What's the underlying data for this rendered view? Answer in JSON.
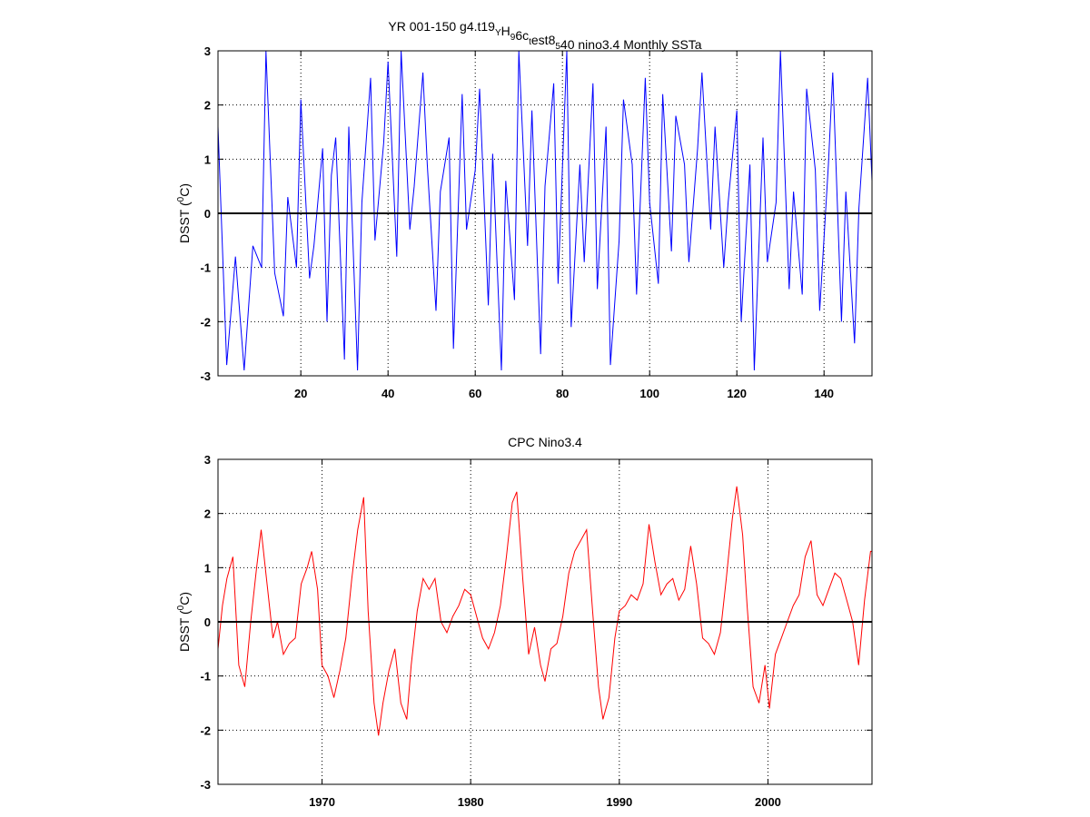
{
  "chart_data": [
    {
      "type": "line",
      "title": "",
      "title_parts": [
        {
          "text": "YR 001-150 g4.t19",
          "sub": false
        },
        {
          "text": "Y",
          "sub": true
        },
        {
          "text": "H",
          "sub": false
        },
        {
          "text": "9",
          "sub": true
        },
        {
          "text": "6c",
          "sub": false
        },
        {
          "text": "t",
          "sub": true
        },
        {
          "text": "est8",
          "sub": false
        },
        {
          "text": "5",
          "sub": true
        },
        {
          "text": "40 nino3.4 Monthly SSTa",
          "sub": false
        }
      ],
      "ylabel": "DSST (",
      "ylabel_sup": "0",
      "ylabel_end": "C)",
      "xlim": [
        1,
        151
      ],
      "ylim": [
        -3,
        3
      ],
      "xticks": [
        20,
        40,
        60,
        80,
        100,
        120,
        140
      ],
      "yticks": [
        -3,
        -2,
        -1,
        0,
        1,
        2,
        3
      ],
      "grid": true,
      "color": "#0000ff",
      "zero_line": true,
      "series": [
        {
          "x": [
            1,
            3,
            5,
            7,
            9,
            11,
            12,
            14,
            16,
            17,
            19,
            20,
            22,
            23,
            25,
            26,
            27,
            28,
            30,
            31,
            33,
            34,
            36,
            37,
            39,
            40,
            42,
            43,
            45,
            46,
            48,
            49,
            51,
            52,
            54,
            55,
            57,
            58,
            60,
            61,
            63,
            64,
            66,
            67,
            69,
            70,
            72,
            73,
            75,
            76,
            78,
            79,
            81,
            82,
            84,
            85,
            87,
            88,
            90,
            91,
            93,
            94,
            96,
            97,
            99,
            100,
            102,
            103,
            105,
            106,
            108,
            109,
            111,
            112,
            114,
            115,
            117,
            118,
            120,
            121,
            123,
            124,
            126,
            127,
            129,
            130,
            132,
            133,
            135,
            136,
            138,
            139,
            141,
            142,
            144,
            145,
            147,
            148,
            150,
            151
          ],
          "y": [
            1.6,
            -2.8,
            -0.8,
            -2.9,
            -0.6,
            -1.0,
            3.0,
            -1.1,
            -1.9,
            0.3,
            -1.0,
            2.1,
            -1.2,
            -0.6,
            1.2,
            -2.0,
            0.7,
            1.4,
            -2.7,
            1.6,
            -2.9,
            0.2,
            2.5,
            -0.5,
            1.3,
            2.8,
            -0.8,
            3.0,
            -0.3,
            0.5,
            2.6,
            0.9,
            -1.8,
            0.4,
            1.4,
            -2.5,
            2.2,
            -0.3,
            0.8,
            2.3,
            -1.7,
            1.1,
            -2.9,
            0.6,
            -1.6,
            3.0,
            -0.6,
            1.9,
            -2.6,
            0.5,
            2.4,
            -1.3,
            3.0,
            -2.1,
            0.9,
            -0.9,
            2.4,
            -1.4,
            1.6,
            -2.8,
            -0.5,
            2.1,
            0.9,
            -1.5,
            2.5,
            0.2,
            -1.3,
            2.2,
            -0.7,
            1.8,
            0.9,
            -0.9,
            1.2,
            2.6,
            -0.3,
            1.6,
            -1.0,
            0.2,
            1.9,
            -2.0,
            0.9,
            -2.9,
            1.4,
            -0.9,
            0.2,
            3.0,
            -1.4,
            0.4,
            -1.5,
            2.3,
            0.8,
            -1.8,
            0.9,
            2.6,
            -2.0,
            0.4,
            -2.4,
            0.1,
            2.5,
            0.6
          ]
        }
      ]
    },
    {
      "type": "line",
      "title": "CPC Nino3.4",
      "ylabel": "DSST (",
      "ylabel_sup": "0",
      "ylabel_end": "C)",
      "xlim": [
        1963,
        2007
      ],
      "ylim": [
        -3,
        3
      ],
      "xticks": [
        1970,
        1980,
        1990,
        2000
      ],
      "yticks": [
        -3,
        -2,
        -1,
        0,
        1,
        2,
        3
      ],
      "grid": true,
      "color": "#ff0000",
      "zero_line": true,
      "series": [
        {
          "x": [
            1963.0,
            1963.3,
            1963.6,
            1964.0,
            1964.4,
            1964.8,
            1965.2,
            1965.6,
            1965.9,
            1966.3,
            1966.7,
            1967.0,
            1967.4,
            1967.8,
            1968.2,
            1968.6,
            1969.0,
            1969.3,
            1969.7,
            1970.0,
            1970.4,
            1970.8,
            1971.2,
            1971.6,
            1972.0,
            1972.4,
            1972.8,
            1973.1,
            1973.5,
            1973.8,
            1974.1,
            1974.5,
            1974.9,
            1975.3,
            1975.7,
            1976.0,
            1976.4,
            1976.8,
            1977.2,
            1977.6,
            1978.0,
            1978.4,
            1978.8,
            1979.2,
            1979.6,
            1980.0,
            1980.4,
            1980.8,
            1981.2,
            1981.6,
            1982.0,
            1982.4,
            1982.8,
            1983.1,
            1983.5,
            1983.9,
            1984.3,
            1984.7,
            1985.0,
            1985.4,
            1985.8,
            1986.2,
            1986.6,
            1987.0,
            1987.4,
            1987.8,
            1988.2,
            1988.6,
            1988.9,
            1989.3,
            1989.7,
            1990.0,
            1990.4,
            1990.8,
            1991.2,
            1991.6,
            1992.0,
            1992.4,
            1992.8,
            1993.2,
            1993.6,
            1994.0,
            1994.4,
            1994.8,
            1995.2,
            1995.6,
            1996.0,
            1996.4,
            1996.8,
            1997.2,
            1997.6,
            1997.9,
            1998.3,
            1998.6,
            1999.0,
            1999.4,
            1999.8,
            2000.1,
            2000.5,
            2000.9,
            2001.3,
            2001.7,
            2002.1,
            2002.5,
            2002.9,
            2003.3,
            2003.7,
            2004.1,
            2004.5,
            2004.9,
            2005.3,
            2005.7,
            2006.1,
            2006.5,
            2006.9,
            2007.0
          ],
          "y": [
            -0.5,
            0.3,
            0.8,
            1.2,
            -0.8,
            -1.2,
            0.0,
            1.0,
            1.7,
            0.7,
            -0.3,
            0.0,
            -0.6,
            -0.4,
            -0.3,
            0.7,
            1.0,
            1.3,
            0.6,
            -0.8,
            -1.0,
            -1.4,
            -0.9,
            -0.3,
            0.8,
            1.7,
            2.3,
            0.2,
            -1.5,
            -2.1,
            -1.5,
            -0.9,
            -0.5,
            -1.5,
            -1.8,
            -0.8,
            0.2,
            0.8,
            0.6,
            0.8,
            0.0,
            -0.2,
            0.1,
            0.3,
            0.6,
            0.5,
            0.1,
            -0.3,
            -0.5,
            -0.2,
            0.3,
            1.2,
            2.2,
            2.4,
            0.8,
            -0.6,
            -0.1,
            -0.8,
            -1.1,
            -0.5,
            -0.4,
            0.1,
            0.9,
            1.3,
            1.5,
            1.7,
            0.2,
            -1.2,
            -1.8,
            -1.4,
            -0.3,
            0.2,
            0.3,
            0.5,
            0.4,
            0.7,
            1.8,
            1.1,
            0.5,
            0.7,
            0.8,
            0.4,
            0.6,
            1.4,
            0.7,
            -0.3,
            -0.4,
            -0.6,
            -0.2,
            0.8,
            1.9,
            2.5,
            1.6,
            0.3,
            -1.2,
            -1.5,
            -0.8,
            -1.6,
            -0.6,
            -0.3,
            0.0,
            0.3,
            0.5,
            1.2,
            1.5,
            0.5,
            0.3,
            0.6,
            0.9,
            0.8,
            0.4,
            0.0,
            -0.8,
            0.4,
            1.3,
            1.3
          ]
        }
      ]
    }
  ]
}
